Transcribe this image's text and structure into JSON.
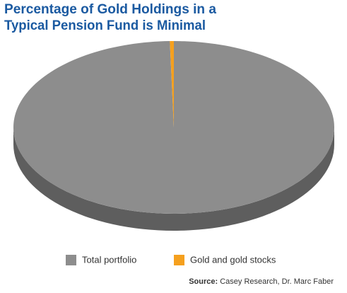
{
  "chart_data": {
    "type": "pie",
    "title": [
      "Percentage of Gold Holdings in a",
      "Typical Pension Fund is Minimal"
    ],
    "categories": [
      "Total portfolio",
      "Gold and gold stocks"
    ],
    "values": [
      99.6,
      0.4
    ],
    "colors": [
      "#8d8d8d",
      "#f5a01e"
    ],
    "source_label": "Source:",
    "source": "Casey Research, Dr. Marc Faber"
  }
}
